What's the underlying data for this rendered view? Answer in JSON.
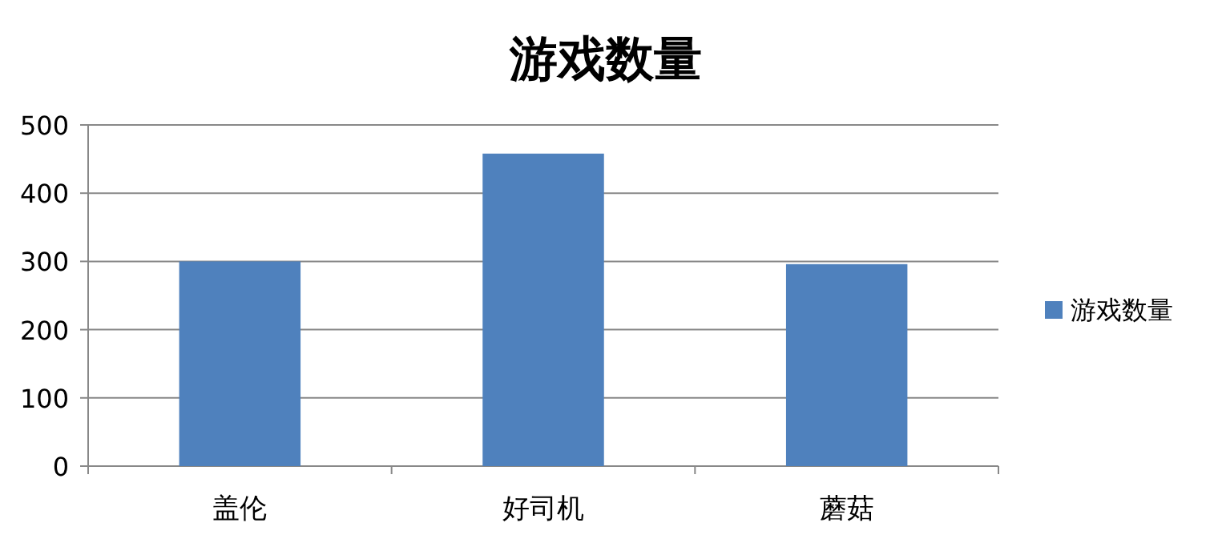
{
  "chart_data": {
    "type": "bar",
    "title": "游戏数量",
    "categories": [
      "盖伦",
      "好司机",
      "蘑菇"
    ],
    "series": [
      {
        "name": "游戏数量",
        "color": "#4f81bd",
        "values": [
          300,
          458,
          296
        ]
      }
    ],
    "ylim": [
      0,
      500
    ],
    "yticks": [
      0,
      100,
      200,
      300,
      400,
      500
    ],
    "grid": "y",
    "legend": "right"
  }
}
